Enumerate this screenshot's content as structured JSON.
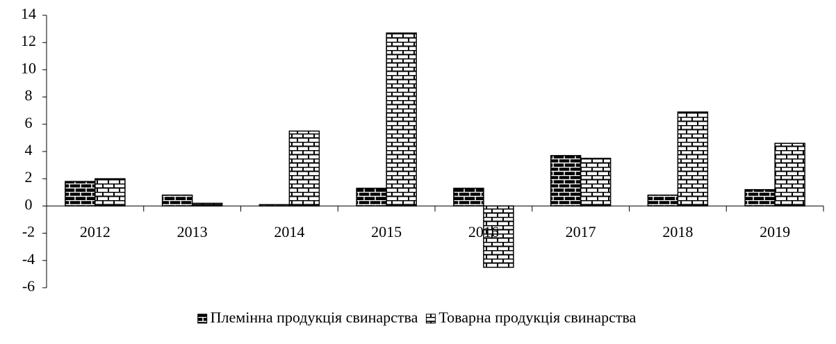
{
  "chart_data": {
    "type": "bar",
    "categories": [
      "2012",
      "2013",
      "2014",
      "2015",
      "2016",
      "2017",
      "2018",
      "2019"
    ],
    "series": [
      {
        "name": "Племінна продукція свинарства",
        "color": "#000000",
        "values": [
          1.8,
          0.8,
          0.1,
          1.3,
          1.3,
          3.7,
          0.8,
          1.2
        ]
      },
      {
        "name": "Товарна продукція свинарства",
        "color": "#ffffff",
        "values": [
          2.0,
          0.2,
          5.5,
          12.7,
          -4.5,
          3.5,
          6.9,
          4.6
        ]
      }
    ],
    "ylim": [
      -6,
      14
    ],
    "yticks": [
      -6,
      -4,
      -2,
      0,
      2,
      4,
      6,
      8,
      10,
      12,
      14
    ],
    "legend": "bottom"
  }
}
